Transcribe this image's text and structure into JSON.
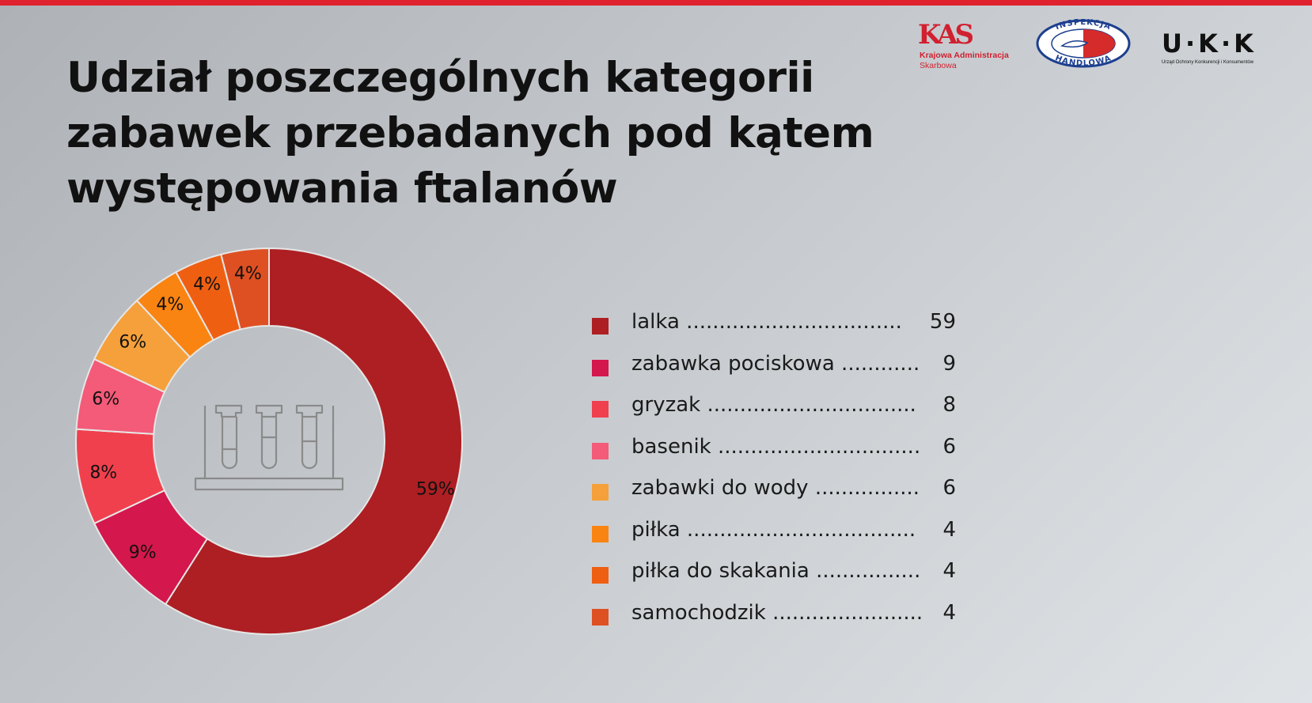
{
  "title": "Udział poszczególnych kategorii zabawek przebadanych pod kątem występowania ftalanów",
  "logos": {
    "kas": {
      "mark": "KAS",
      "line1": "Krajowa Administracja",
      "line2": "Skarbowa"
    },
    "ih": {
      "top_text": "INSPEKCJA",
      "bottom_text": "HANDLOWA"
    },
    "uokik": {
      "mark": "U·K·K",
      "subtitle": "Urząd Ochrony Konkurencji i Konsumentów"
    }
  },
  "chart_data": {
    "type": "pie",
    "categories": [
      "lalka",
      "zabawka pociskowa",
      "gryzak",
      "basenik",
      "zabawki do wody",
      "piłka",
      "piłka do skakania",
      "samochodzik"
    ],
    "values": [
      59,
      9,
      8,
      6,
      6,
      4,
      4,
      4
    ],
    "slice_labels": [
      "59%",
      "9%",
      "8%",
      "6%",
      "6%",
      "4%",
      "4%",
      "4%"
    ],
    "colors": [
      "#ad1f23",
      "#d4174c",
      "#f0404d",
      "#f35b78",
      "#f5a03a",
      "#fa8411",
      "#ef5f12",
      "#de5022"
    ],
    "legend_dots": [
      ".................................",
      "............",
      "................................",
      "...............................",
      "................",
      "...................................",
      "................",
      "......................."
    ],
    "legend_position": "right",
    "center_icon": "test-tubes-rack-icon"
  }
}
